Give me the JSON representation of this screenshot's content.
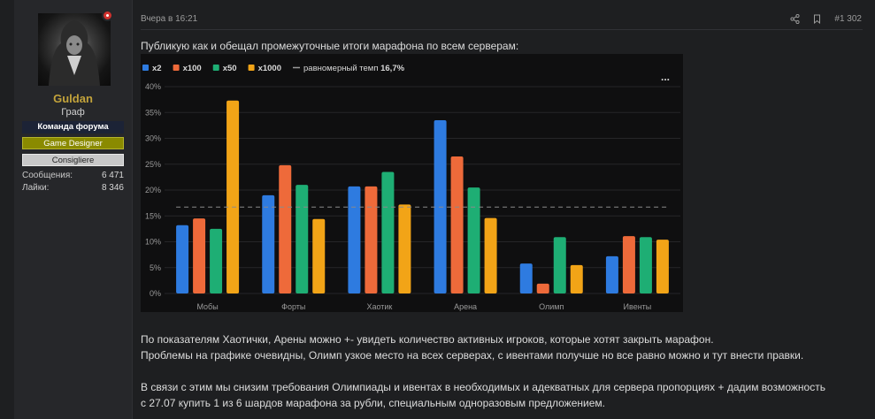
{
  "user": {
    "name": "Guldan",
    "title": "Граф",
    "banners": [
      "Команда форума",
      "Game Designer",
      "Consigliere"
    ],
    "stats": [
      {
        "label": "Сообщения:",
        "value": "6 471"
      },
      {
        "label": "Лайки:",
        "value": "8 346"
      }
    ]
  },
  "post": {
    "date": "Вчера в 16:21",
    "number": "#1 302",
    "intro": "Публикую как и обещал промежуточные итоги марафона по всем серверам:",
    "paragraphs": [
      "По показателям Хаотички, Арены можно +- увидеть количество активных игроков, которые хотят закрыть марафон.",
      "Проблемы на графике очевидны, Олимп узкое место на всех серверах, с ивентами получше но все равно можно и тут внести правки.",
      "В связи с этим мы снизим требования Олимпиады и ивентах в необходимых и адекватных для сервера пропорциях + дадим возможность",
      "с 27.07 купить 1 из 6 шардов марафона за рубли, специальным одноразовым предложением."
    ]
  },
  "icons": {
    "share": "share-icon",
    "bookmark": "bookmark-icon",
    "menu": "more-icon"
  },
  "chart_data": {
    "type": "bar",
    "categories": [
      "Мобы",
      "Форты",
      "Хаотик",
      "Арена",
      "Олимп",
      "Ивенты"
    ],
    "series": [
      {
        "name": "x2",
        "color": "#2e7be0",
        "values": [
          13.2,
          19.0,
          20.7,
          33.5,
          5.8,
          7.2
        ]
      },
      {
        "name": "x100",
        "color": "#ee6a3a",
        "values": [
          14.5,
          24.8,
          20.7,
          26.5,
          1.9,
          11.1
        ]
      },
      {
        "name": "x50",
        "color": "#1eae74",
        "values": [
          12.5,
          21.0,
          23.5,
          20.5,
          10.9,
          10.9
        ]
      },
      {
        "name": "x1000",
        "color": "#f2a417",
        "values": [
          37.3,
          14.4,
          17.2,
          14.6,
          5.5,
          10.4
        ]
      }
    ],
    "reference": {
      "label": "равномерный темп",
      "value_label": "16,7%",
      "value": 16.7
    },
    "ylim": [
      0,
      40
    ],
    "yticks": [
      "0%",
      "5%",
      "10%",
      "15%",
      "20%",
      "25%",
      "30%",
      "35%",
      "40%"
    ],
    "legend": "top-left",
    "grid": true,
    "menu_label": "..."
  }
}
